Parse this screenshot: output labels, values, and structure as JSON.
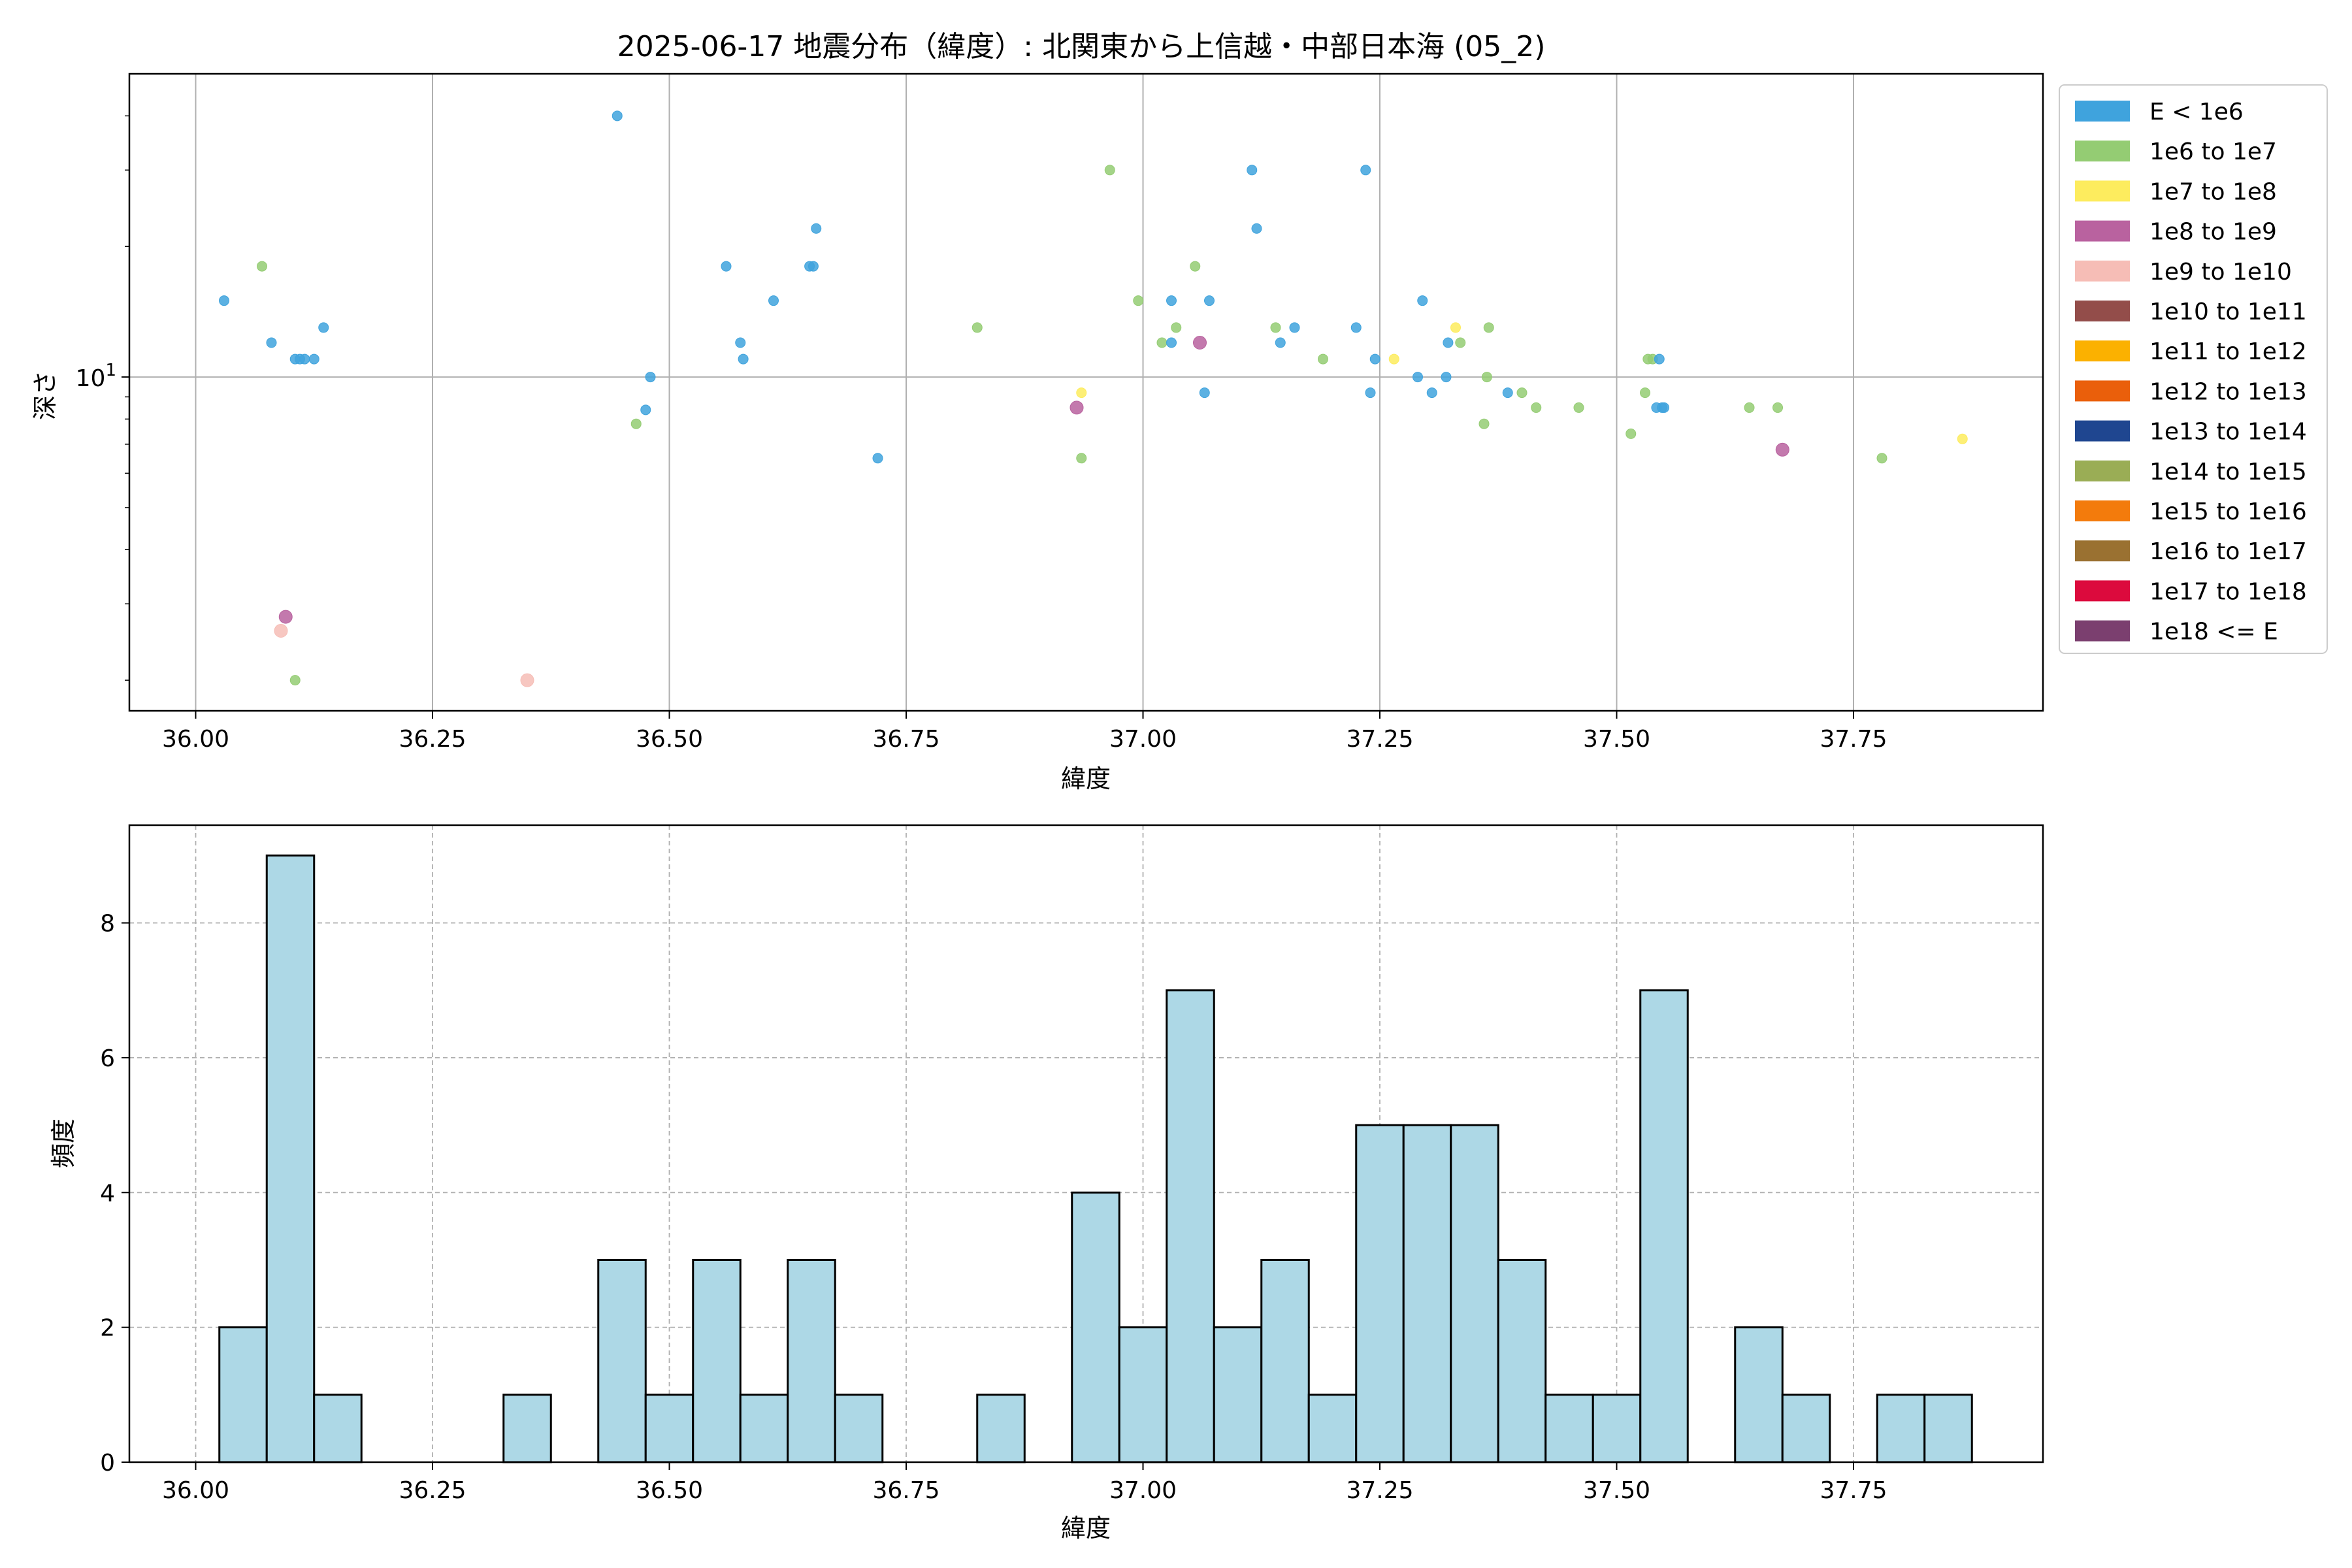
{
  "chart_data": [
    {
      "type": "scatter",
      "title": "2025-06-17 地震分布（緯度）: 北関東から上信越・中部日本海 (05_2)",
      "xlabel": "緯度",
      "ylabel": "深さ",
      "xlim": [
        35.93,
        37.95
      ],
      "ylim": [
        1.7,
        50
      ],
      "yscale": "log",
      "xticks": [
        "36.00",
        "36.25",
        "36.50",
        "36.75",
        "37.00",
        "37.25",
        "37.50",
        "37.75"
      ],
      "yticks": [
        {
          "value": 10,
          "base": "10",
          "exp": "1"
        }
      ],
      "grid": true,
      "legend_position": "outside-right",
      "legend": [
        {
          "label": "E < 1e6",
          "color": "#3fa3dd"
        },
        {
          "label": "1e6 to 1e7",
          "color": "#94cc73"
        },
        {
          "label": "1e7 to 1e8",
          "color": "#fdec5e"
        },
        {
          "label": "1e8 to 1e9",
          "color": "#b9629f"
        },
        {
          "label": "1e9 to 1e10",
          "color": "#f6bdb6"
        },
        {
          "label": "1e10 to 1e11",
          "color": "#934d4a"
        },
        {
          "label": "1e11 to 1e12",
          "color": "#fbb100"
        },
        {
          "label": "1e12 to 1e13",
          "color": "#ea5f0b"
        },
        {
          "label": "1e13 to 1e14",
          "color": "#1f4690"
        },
        {
          "label": "1e14 to 1e15",
          "color": "#9aad55"
        },
        {
          "label": "1e15 to 1e16",
          "color": "#f37b0c"
        },
        {
          "label": "1e16 to 1e17",
          "color": "#9a7131"
        },
        {
          "label": "1e17 to 1e18",
          "color": "#dc0a3d"
        },
        {
          "label": "1e18 <= E",
          "color": "#7b3f6f"
        }
      ],
      "points": [
        {
          "x": 36.03,
          "y": 15,
          "c": 0
        },
        {
          "x": 36.07,
          "y": 18,
          "c": 1
        },
        {
          "x": 36.08,
          "y": 12,
          "c": 0
        },
        {
          "x": 36.105,
          "y": 11,
          "c": 0
        },
        {
          "x": 36.11,
          "y": 11,
          "c": 0
        },
        {
          "x": 36.115,
          "y": 11,
          "c": 0
        },
        {
          "x": 36.125,
          "y": 11,
          "c": 0
        },
        {
          "x": 36.135,
          "y": 13,
          "c": 0
        },
        {
          "x": 36.095,
          "y": 2.8,
          "c": 3
        },
        {
          "x": 36.09,
          "y": 2.6,
          "c": 4
        },
        {
          "x": 36.105,
          "y": 2.0,
          "c": 1
        },
        {
          "x": 36.35,
          "y": 2.0,
          "c": 4
        },
        {
          "x": 36.445,
          "y": 40,
          "c": 0
        },
        {
          "x": 36.465,
          "y": 7.8,
          "c": 1
        },
        {
          "x": 36.475,
          "y": 8.4,
          "c": 0
        },
        {
          "x": 36.48,
          "y": 10,
          "c": 0
        },
        {
          "x": 36.56,
          "y": 18,
          "c": 0
        },
        {
          "x": 36.575,
          "y": 12,
          "c": 0
        },
        {
          "x": 36.578,
          "y": 11,
          "c": 0
        },
        {
          "x": 36.61,
          "y": 15,
          "c": 0
        },
        {
          "x": 36.648,
          "y": 18,
          "c": 0
        },
        {
          "x": 36.652,
          "y": 18,
          "c": 0
        },
        {
          "x": 36.655,
          "y": 22,
          "c": 0
        },
        {
          "x": 36.72,
          "y": 6.5,
          "c": 0
        },
        {
          "x": 36.825,
          "y": 13,
          "c": 1
        },
        {
          "x": 36.93,
          "y": 8.5,
          "c": 3
        },
        {
          "x": 36.935,
          "y": 9.2,
          "c": 2
        },
        {
          "x": 36.935,
          "y": 6.5,
          "c": 1
        },
        {
          "x": 36.965,
          "y": 30,
          "c": 1
        },
        {
          "x": 36.995,
          "y": 15,
          "c": 1
        },
        {
          "x": 37.02,
          "y": 12,
          "c": 1
        },
        {
          "x": 37.03,
          "y": 12,
          "c": 0
        },
        {
          "x": 37.03,
          "y": 15,
          "c": 0
        },
        {
          "x": 37.035,
          "y": 13,
          "c": 1
        },
        {
          "x": 37.055,
          "y": 18,
          "c": 1
        },
        {
          "x": 37.06,
          "y": 12,
          "c": 3
        },
        {
          "x": 37.065,
          "y": 9.2,
          "c": 0
        },
        {
          "x": 37.07,
          "y": 15,
          "c": 0
        },
        {
          "x": 37.115,
          "y": 30,
          "c": 0
        },
        {
          "x": 37.12,
          "y": 22,
          "c": 0
        },
        {
          "x": 37.14,
          "y": 13,
          "c": 1
        },
        {
          "x": 37.145,
          "y": 12,
          "c": 0
        },
        {
          "x": 37.16,
          "y": 13,
          "c": 0
        },
        {
          "x": 37.19,
          "y": 11,
          "c": 1
        },
        {
          "x": 37.225,
          "y": 13,
          "c": 0
        },
        {
          "x": 37.235,
          "y": 30,
          "c": 0
        },
        {
          "x": 37.24,
          "y": 9.2,
          "c": 0
        },
        {
          "x": 37.245,
          "y": 11,
          "c": 0
        },
        {
          "x": 37.265,
          "y": 11,
          "c": 2
        },
        {
          "x": 37.29,
          "y": 10,
          "c": 0
        },
        {
          "x": 37.295,
          "y": 15,
          "c": 0
        },
        {
          "x": 37.305,
          "y": 9.2,
          "c": 0
        },
        {
          "x": 37.32,
          "y": 10,
          "c": 0
        },
        {
          "x": 37.322,
          "y": 12,
          "c": 0
        },
        {
          "x": 37.33,
          "y": 13,
          "c": 2
        },
        {
          "x": 37.335,
          "y": 12,
          "c": 1
        },
        {
          "x": 37.36,
          "y": 7.8,
          "c": 1
        },
        {
          "x": 37.363,
          "y": 10,
          "c": 1
        },
        {
          "x": 37.365,
          "y": 13,
          "c": 1
        },
        {
          "x": 37.385,
          "y": 9.2,
          "c": 0
        },
        {
          "x": 37.4,
          "y": 9.2,
          "c": 1
        },
        {
          "x": 37.415,
          "y": 8.5,
          "c": 1
        },
        {
          "x": 37.46,
          "y": 8.5,
          "c": 1
        },
        {
          "x": 37.515,
          "y": 7.4,
          "c": 1
        },
        {
          "x": 37.53,
          "y": 9.2,
          "c": 1
        },
        {
          "x": 37.533,
          "y": 11,
          "c": 1
        },
        {
          "x": 37.538,
          "y": 11,
          "c": 1
        },
        {
          "x": 37.542,
          "y": 8.5,
          "c": 0
        },
        {
          "x": 37.545,
          "y": 11,
          "c": 0
        },
        {
          "x": 37.548,
          "y": 8.5,
          "c": 0
        },
        {
          "x": 37.55,
          "y": 8.5,
          "c": 0
        },
        {
          "x": 37.64,
          "y": 8.5,
          "c": 1
        },
        {
          "x": 37.67,
          "y": 8.5,
          "c": 1
        },
        {
          "x": 37.675,
          "y": 6.8,
          "c": 3
        },
        {
          "x": 37.78,
          "y": 6.5,
          "c": 1
        },
        {
          "x": 37.865,
          "y": 7.2,
          "c": 2
        }
      ]
    },
    {
      "type": "bar",
      "xlabel": "緯度",
      "ylabel": "頻度",
      "xlim": [
        35.93,
        37.95
      ],
      "ylim": [
        0,
        9.45
      ],
      "xticks": [
        "36.00",
        "36.25",
        "36.50",
        "36.75",
        "37.00",
        "37.25",
        "37.50",
        "37.75"
      ],
      "yticks": [
        "0",
        "2",
        "4",
        "6",
        "8"
      ],
      "grid": true,
      "bar_color": "#add8e6",
      "bin_start": 36.025,
      "bin_width": 0.05,
      "values": [
        2,
        9,
        1,
        0,
        0,
        0,
        1,
        0,
        3,
        1,
        3,
        1,
        3,
        1,
        0,
        0,
        1,
        0,
        4,
        2,
        7,
        2,
        3,
        1,
        5,
        5,
        5,
        3,
        1,
        1,
        7,
        0,
        2,
        1,
        0,
        1,
        1
      ]
    }
  ]
}
